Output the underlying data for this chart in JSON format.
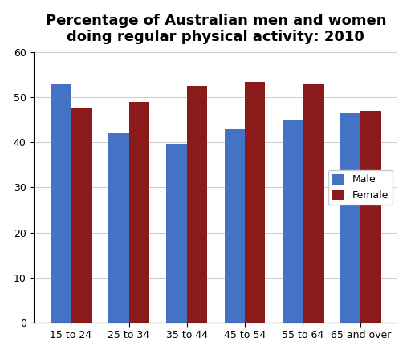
{
  "title": "Percentage of Australian men and women\ndoing regular physical activity: 2010",
  "categories": [
    "15 to 24",
    "25 to 34",
    "35 to 44",
    "45 to 54",
    "55 to 64",
    "65 and over"
  ],
  "male_values": [
    53,
    42,
    39.5,
    43,
    45,
    46.5
  ],
  "female_values": [
    47.5,
    49,
    52.5,
    53.5,
    53,
    47
  ],
  "male_color": "#4472C4",
  "female_color": "#8B1A1A",
  "ylim": [
    0,
    60
  ],
  "yticks": [
    0,
    10,
    20,
    30,
    40,
    50,
    60
  ],
  "legend_labels": [
    "Male",
    "Female"
  ],
  "bar_width": 0.35,
  "title_fontsize": 13,
  "tick_fontsize": 9,
  "legend_fontsize": 9,
  "background_color": "#ffffff",
  "plot_bg_color": "#ffffff"
}
